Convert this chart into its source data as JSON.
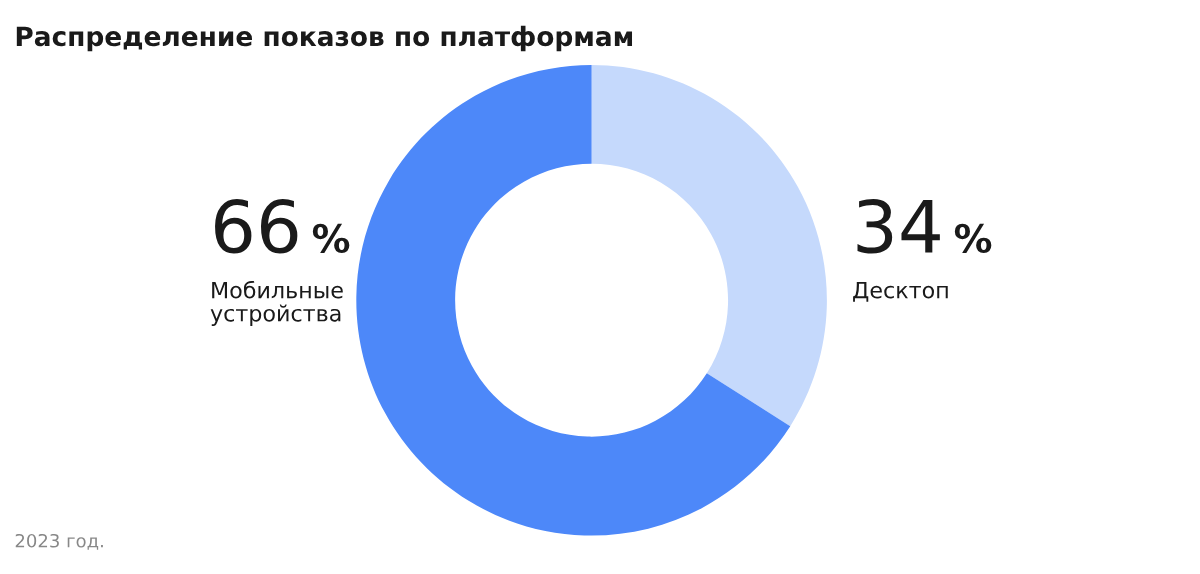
{
  "chart_data": {
    "type": "donut",
    "title": "Распределение показов по платформам",
    "categories": [
      "Мобильные устройства",
      "Десктоп"
    ],
    "values": [
      66,
      34
    ],
    "colors": [
      "#4d88f9",
      "#c5d9fc"
    ],
    "value_labels": [
      "66 %",
      "34 %"
    ],
    "annotations": [
      "2023 год."
    ],
    "legend": false
  }
}
